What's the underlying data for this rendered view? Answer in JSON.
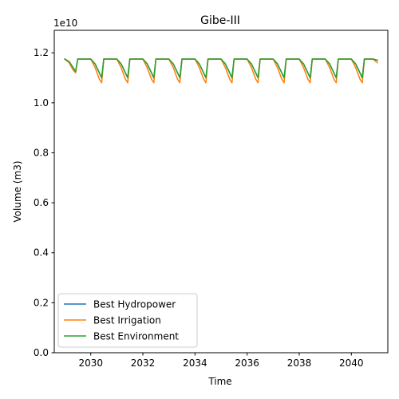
{
  "chart_data": {
    "type": "line",
    "title": "Gibe-III",
    "xlabel": "Time",
    "ylabel": "Volume (m3)",
    "y_offset_text": "1e10",
    "xlim": [
      2028.6,
      2041.4
    ],
    "ylim": [
      0.0,
      1.29
    ],
    "x_ticks": [
      2030,
      2032,
      2034,
      2036,
      2038,
      2040
    ],
    "x_tick_labels": [
      "2030",
      "2032",
      "2034",
      "2036",
      "2038",
      "2040"
    ],
    "y_ticks": [
      0.0,
      0.2,
      0.4,
      0.6,
      0.8,
      1.0,
      1.2
    ],
    "y_tick_labels": [
      "0.0",
      "0.2",
      "0.4",
      "0.6",
      "0.8",
      "1.0",
      "1.2"
    ],
    "grid": false,
    "legend_position": "lower-left",
    "x": [
      2029.0,
      2029.17,
      2029.33,
      2029.42,
      2029.5,
      2029.67,
      2029.83,
      2030.0,
      2030.17,
      2030.33,
      2030.42,
      2030.5,
      2030.67,
      2030.83,
      2031.0,
      2031.17,
      2031.33,
      2031.42,
      2031.5,
      2031.67,
      2031.83,
      2032.0,
      2032.17,
      2032.33,
      2032.42,
      2032.5,
      2032.67,
      2032.83,
      2033.0,
      2033.17,
      2033.33,
      2033.42,
      2033.5,
      2033.67,
      2033.83,
      2034.0,
      2034.17,
      2034.33,
      2034.42,
      2034.5,
      2034.67,
      2034.83,
      2035.0,
      2035.17,
      2035.33,
      2035.42,
      2035.5,
      2035.67,
      2035.83,
      2036.0,
      2036.17,
      2036.33,
      2036.42,
      2036.5,
      2036.67,
      2036.83,
      2037.0,
      2037.17,
      2037.33,
      2037.42,
      2037.5,
      2037.67,
      2037.83,
      2038.0,
      2038.17,
      2038.33,
      2038.42,
      2038.5,
      2038.67,
      2038.83,
      2039.0,
      2039.17,
      2039.33,
      2039.42,
      2039.5,
      2039.67,
      2039.83,
      2040.0,
      2040.17,
      2040.33,
      2040.42,
      2040.5,
      2040.67,
      2040.83,
      2041.0
    ],
    "series": [
      {
        "name": "Best Hydropower",
        "color": "#1f77b4",
        "values": [
          1.175,
          1.165,
          1.14,
          1.125,
          1.175,
          1.175,
          1.175,
          1.175,
          1.155,
          1.12,
          1.1,
          1.175,
          1.175,
          1.175,
          1.175,
          1.155,
          1.12,
          1.1,
          1.175,
          1.175,
          1.175,
          1.175,
          1.155,
          1.12,
          1.1,
          1.175,
          1.175,
          1.175,
          1.175,
          1.155,
          1.12,
          1.1,
          1.175,
          1.175,
          1.175,
          1.175,
          1.155,
          1.12,
          1.1,
          1.175,
          1.175,
          1.175,
          1.175,
          1.155,
          1.12,
          1.1,
          1.175,
          1.175,
          1.175,
          1.175,
          1.155,
          1.12,
          1.1,
          1.175,
          1.175,
          1.175,
          1.175,
          1.155,
          1.12,
          1.1,
          1.175,
          1.175,
          1.175,
          1.175,
          1.155,
          1.12,
          1.1,
          1.175,
          1.175,
          1.175,
          1.175,
          1.155,
          1.12,
          1.1,
          1.175,
          1.175,
          1.175,
          1.175,
          1.155,
          1.12,
          1.1,
          1.175,
          1.175,
          1.175,
          1.17
        ]
      },
      {
        "name": "Best Irrigation",
        "color": "#ff7f0e",
        "values": [
          1.175,
          1.16,
          1.13,
          1.12,
          1.175,
          1.175,
          1.175,
          1.175,
          1.14,
          1.095,
          1.08,
          1.175,
          1.175,
          1.175,
          1.175,
          1.14,
          1.095,
          1.08,
          1.175,
          1.175,
          1.175,
          1.175,
          1.14,
          1.095,
          1.08,
          1.175,
          1.175,
          1.175,
          1.175,
          1.14,
          1.095,
          1.08,
          1.175,
          1.175,
          1.175,
          1.175,
          1.14,
          1.095,
          1.08,
          1.175,
          1.175,
          1.175,
          1.175,
          1.14,
          1.095,
          1.08,
          1.175,
          1.175,
          1.175,
          1.175,
          1.14,
          1.095,
          1.08,
          1.175,
          1.175,
          1.175,
          1.175,
          1.14,
          1.095,
          1.08,
          1.175,
          1.175,
          1.175,
          1.175,
          1.14,
          1.095,
          1.08,
          1.175,
          1.175,
          1.175,
          1.175,
          1.14,
          1.095,
          1.08,
          1.175,
          1.175,
          1.175,
          1.175,
          1.14,
          1.095,
          1.08,
          1.175,
          1.175,
          1.175,
          1.16
        ]
      },
      {
        "name": "Best Environment",
        "color": "#2ca02c",
        "values": [
          1.175,
          1.165,
          1.14,
          1.125,
          1.175,
          1.175,
          1.175,
          1.175,
          1.155,
          1.12,
          1.1,
          1.175,
          1.175,
          1.175,
          1.175,
          1.155,
          1.12,
          1.1,
          1.175,
          1.175,
          1.175,
          1.175,
          1.155,
          1.12,
          1.1,
          1.175,
          1.175,
          1.175,
          1.175,
          1.155,
          1.12,
          1.1,
          1.175,
          1.175,
          1.175,
          1.175,
          1.155,
          1.12,
          1.1,
          1.175,
          1.175,
          1.175,
          1.175,
          1.155,
          1.12,
          1.1,
          1.175,
          1.175,
          1.175,
          1.175,
          1.155,
          1.12,
          1.1,
          1.175,
          1.175,
          1.175,
          1.175,
          1.155,
          1.12,
          1.1,
          1.175,
          1.175,
          1.175,
          1.175,
          1.155,
          1.12,
          1.1,
          1.175,
          1.175,
          1.175,
          1.175,
          1.155,
          1.12,
          1.1,
          1.175,
          1.175,
          1.175,
          1.175,
          1.155,
          1.12,
          1.1,
          1.175,
          1.175,
          1.175,
          1.17
        ]
      }
    ]
  }
}
